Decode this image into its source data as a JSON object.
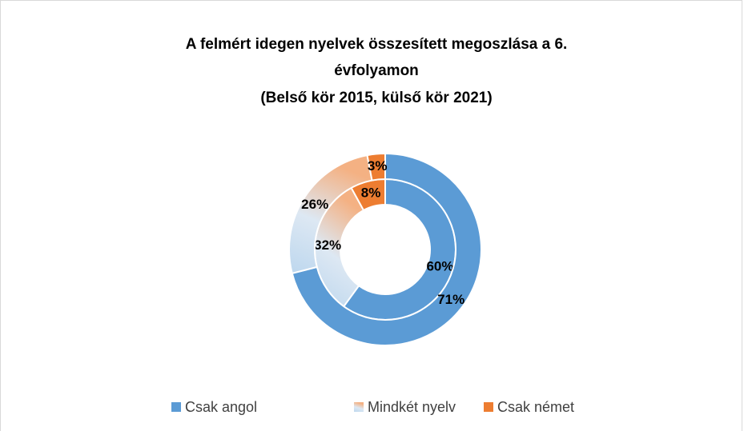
{
  "chart_data": {
    "type": "doughnut",
    "title": [
      "A felmért idegen nyelvek összesített megoszlása a 6.",
      "évfolyamon"
    ],
    "subtitle": "(Belső kör 2015, külső kör 2021)",
    "categories": [
      "Csak angol",
      "Mindkét nyelv",
      "Csak német"
    ],
    "colors": [
      "#5b9bd5",
      "#bdd7ee",
      "#ed7d31"
    ],
    "series": [
      {
        "values": [
          60,
          32,
          8
        ],
        "value_labels": [
          "60%",
          "32%",
          "8%"
        ]
      },
      {
        "values": [
          71,
          26,
          3
        ],
        "value_labels": [
          "71%",
          "26%",
          "3%"
        ]
      }
    ],
    "legend": "bottom"
  }
}
